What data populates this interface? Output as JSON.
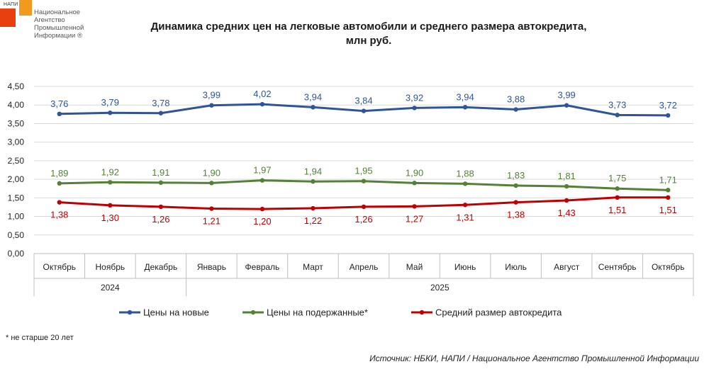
{
  "logo": {
    "abbr": "НАПИ",
    "lines": [
      "Национальное",
      "Агентство",
      "Промышленной",
      "Информации ®"
    ]
  },
  "title_line1": "Динамика средних цен на легковые автомобили и среднего размера автокредита,",
  "title_line2": "млн руб.",
  "footnote": "* не старше 20 лет",
  "source": "Источник: НБКИ, НАПИ / Национальное Агентство Промышленной Информации",
  "colors": {
    "new": "#2f5597",
    "used": "#538135",
    "credit": "#c00000",
    "grid": "#d9d9d9",
    "axis": "#bfbfbf"
  },
  "chart_data": {
    "type": "line",
    "categories": [
      "Октябрь",
      "Ноябрь",
      "Декабрь",
      "Январь",
      "Февраль",
      "Март",
      "Апрель",
      "Май",
      "Июнь",
      "Июль",
      "Август",
      "Сентябрь",
      "Октябрь"
    ],
    "year_groups": [
      {
        "label": "2024",
        "start": 0,
        "end": 2
      },
      {
        "label": "2025",
        "start": 3,
        "end": 12
      }
    ],
    "y_ticks": [
      "0,00",
      "0,50",
      "1,00",
      "1,50",
      "2,00",
      "2,50",
      "3,00",
      "3,50",
      "4,00",
      "4,50"
    ],
    "ylim": [
      0,
      4.5
    ],
    "series": [
      {
        "name": "Цены на новые",
        "key": "new",
        "label_pos": "above",
        "values": [
          3.76,
          3.79,
          3.78,
          3.99,
          4.02,
          3.94,
          3.84,
          3.92,
          3.94,
          3.88,
          3.99,
          3.73,
          3.72
        ],
        "labels": [
          "3,76",
          "3,79",
          "3,78",
          "3,99",
          "4,02",
          "3,94",
          "3,84",
          "3,92",
          "3,94",
          "3,88",
          "3,99",
          "3,73",
          "3,72"
        ]
      },
      {
        "name": "Цены на подержанные*",
        "key": "used",
        "label_pos": "above",
        "values": [
          1.89,
          1.92,
          1.91,
          1.9,
          1.97,
          1.94,
          1.95,
          1.9,
          1.88,
          1.83,
          1.81,
          1.75,
          1.71
        ],
        "labels": [
          "1,89",
          "1,92",
          "1,91",
          "1,90",
          "1,97",
          "1,94",
          "1,95",
          "1,90",
          "1,88",
          "1,83",
          "1,81",
          "1,75",
          "1,71"
        ]
      },
      {
        "name": "Средний размер автокредита",
        "key": "credit",
        "label_pos": "below",
        "values": [
          1.38,
          1.3,
          1.26,
          1.21,
          1.2,
          1.22,
          1.26,
          1.27,
          1.31,
          1.38,
          1.43,
          1.51,
          1.51
        ],
        "labels": [
          "1,38",
          "1,30",
          "1,26",
          "1,21",
          "1,20",
          "1,22",
          "1,26",
          "1,27",
          "1,31",
          "1,38",
          "1,43",
          "1,51",
          "1,51"
        ]
      }
    ]
  }
}
